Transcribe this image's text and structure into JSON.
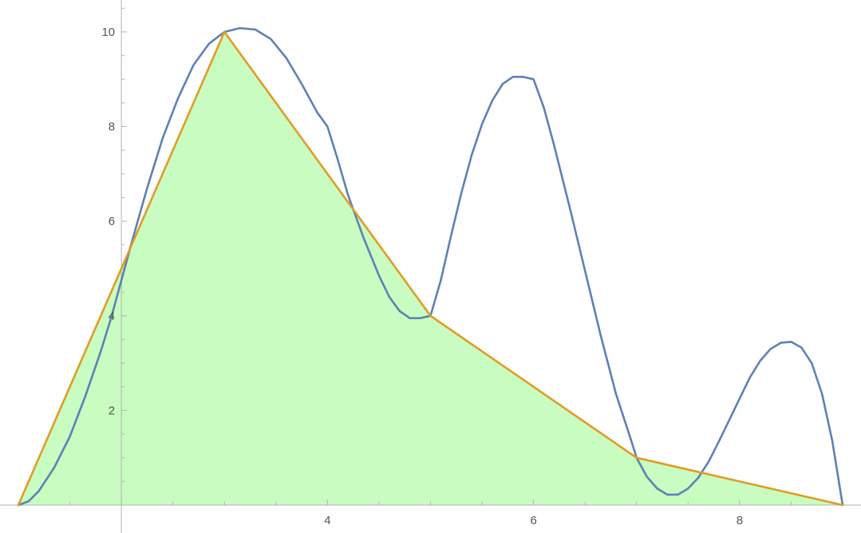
{
  "chart_data": {
    "type": "line",
    "title": "",
    "xlabel": "",
    "ylabel": "",
    "xlim": [
      0.0,
      9.0
    ],
    "ylim": [
      0,
      10.6
    ],
    "grid": false,
    "x_ticks": [
      {
        "value": 4,
        "label": "4"
      },
      {
        "value": 6,
        "label": "6"
      },
      {
        "value": 8,
        "label": "8"
      }
    ],
    "y_ticks": [
      {
        "value": 2,
        "label": "2"
      },
      {
        "value": 4,
        "label": "4"
      },
      {
        "value": 6,
        "label": "6"
      },
      {
        "value": 8,
        "label": "8"
      },
      {
        "value": 10,
        "label": "10"
      }
    ],
    "series": [
      {
        "color": "#e19c24",
        "fill": "#c8fcc0",
        "style": "linear-interpolation-filled",
        "points": [
          [
            1,
            0
          ],
          [
            2,
            5
          ],
          [
            3,
            10
          ],
          [
            5,
            4
          ],
          [
            7,
            1
          ],
          [
            9,
            0
          ]
        ]
      },
      {
        "color": "#5e81b5",
        "style": "smooth-curve",
        "points": [
          [
            1.0,
            0.0
          ],
          [
            1.1,
            0.08
          ],
          [
            1.2,
            0.3
          ],
          [
            1.35,
            0.8
          ],
          [
            1.5,
            1.45
          ],
          [
            1.65,
            2.3
          ],
          [
            1.8,
            3.25
          ],
          [
            1.9,
            3.95
          ],
          [
            2.0,
            4.75
          ],
          [
            2.1,
            5.55
          ],
          [
            2.25,
            6.7
          ],
          [
            2.4,
            7.75
          ],
          [
            2.55,
            8.6
          ],
          [
            2.7,
            9.3
          ],
          [
            2.85,
            9.75
          ],
          [
            3.0,
            10.0
          ],
          [
            3.15,
            10.08
          ],
          [
            3.3,
            10.05
          ],
          [
            3.45,
            9.85
          ],
          [
            3.6,
            9.45
          ],
          [
            3.75,
            8.9
          ],
          [
            3.9,
            8.3
          ],
          [
            4.0,
            8.0
          ],
          [
            4.1,
            7.3
          ],
          [
            4.2,
            6.55
          ],
          [
            4.35,
            5.65
          ],
          [
            4.5,
            4.85
          ],
          [
            4.6,
            4.4
          ],
          [
            4.7,
            4.1
          ],
          [
            4.8,
            3.95
          ],
          [
            4.9,
            3.95
          ],
          [
            5.0,
            4.0
          ],
          [
            5.1,
            4.75
          ],
          [
            5.2,
            5.7
          ],
          [
            5.3,
            6.6
          ],
          [
            5.4,
            7.4
          ],
          [
            5.5,
            8.05
          ],
          [
            5.6,
            8.55
          ],
          [
            5.7,
            8.9
          ],
          [
            5.8,
            9.05
          ],
          [
            5.9,
            9.05
          ],
          [
            6.0,
            9.0
          ],
          [
            6.1,
            8.4
          ],
          [
            6.2,
            7.6
          ],
          [
            6.35,
            6.3
          ],
          [
            6.5,
            4.95
          ],
          [
            6.65,
            3.6
          ],
          [
            6.8,
            2.35
          ],
          [
            6.95,
            1.35
          ],
          [
            7.0,
            1.0
          ],
          [
            7.1,
            0.6
          ],
          [
            7.2,
            0.35
          ],
          [
            7.3,
            0.22
          ],
          [
            7.4,
            0.22
          ],
          [
            7.5,
            0.35
          ],
          [
            7.6,
            0.58
          ],
          [
            7.7,
            0.92
          ],
          [
            7.8,
            1.35
          ],
          [
            7.9,
            1.8
          ],
          [
            8.0,
            2.25
          ],
          [
            8.1,
            2.7
          ],
          [
            8.2,
            3.05
          ],
          [
            8.3,
            3.3
          ],
          [
            8.4,
            3.43
          ],
          [
            8.5,
            3.45
          ],
          [
            8.6,
            3.33
          ],
          [
            8.7,
            3.0
          ],
          [
            8.8,
            2.35
          ],
          [
            8.9,
            1.35
          ],
          [
            9.0,
            0.0
          ]
        ]
      }
    ]
  }
}
